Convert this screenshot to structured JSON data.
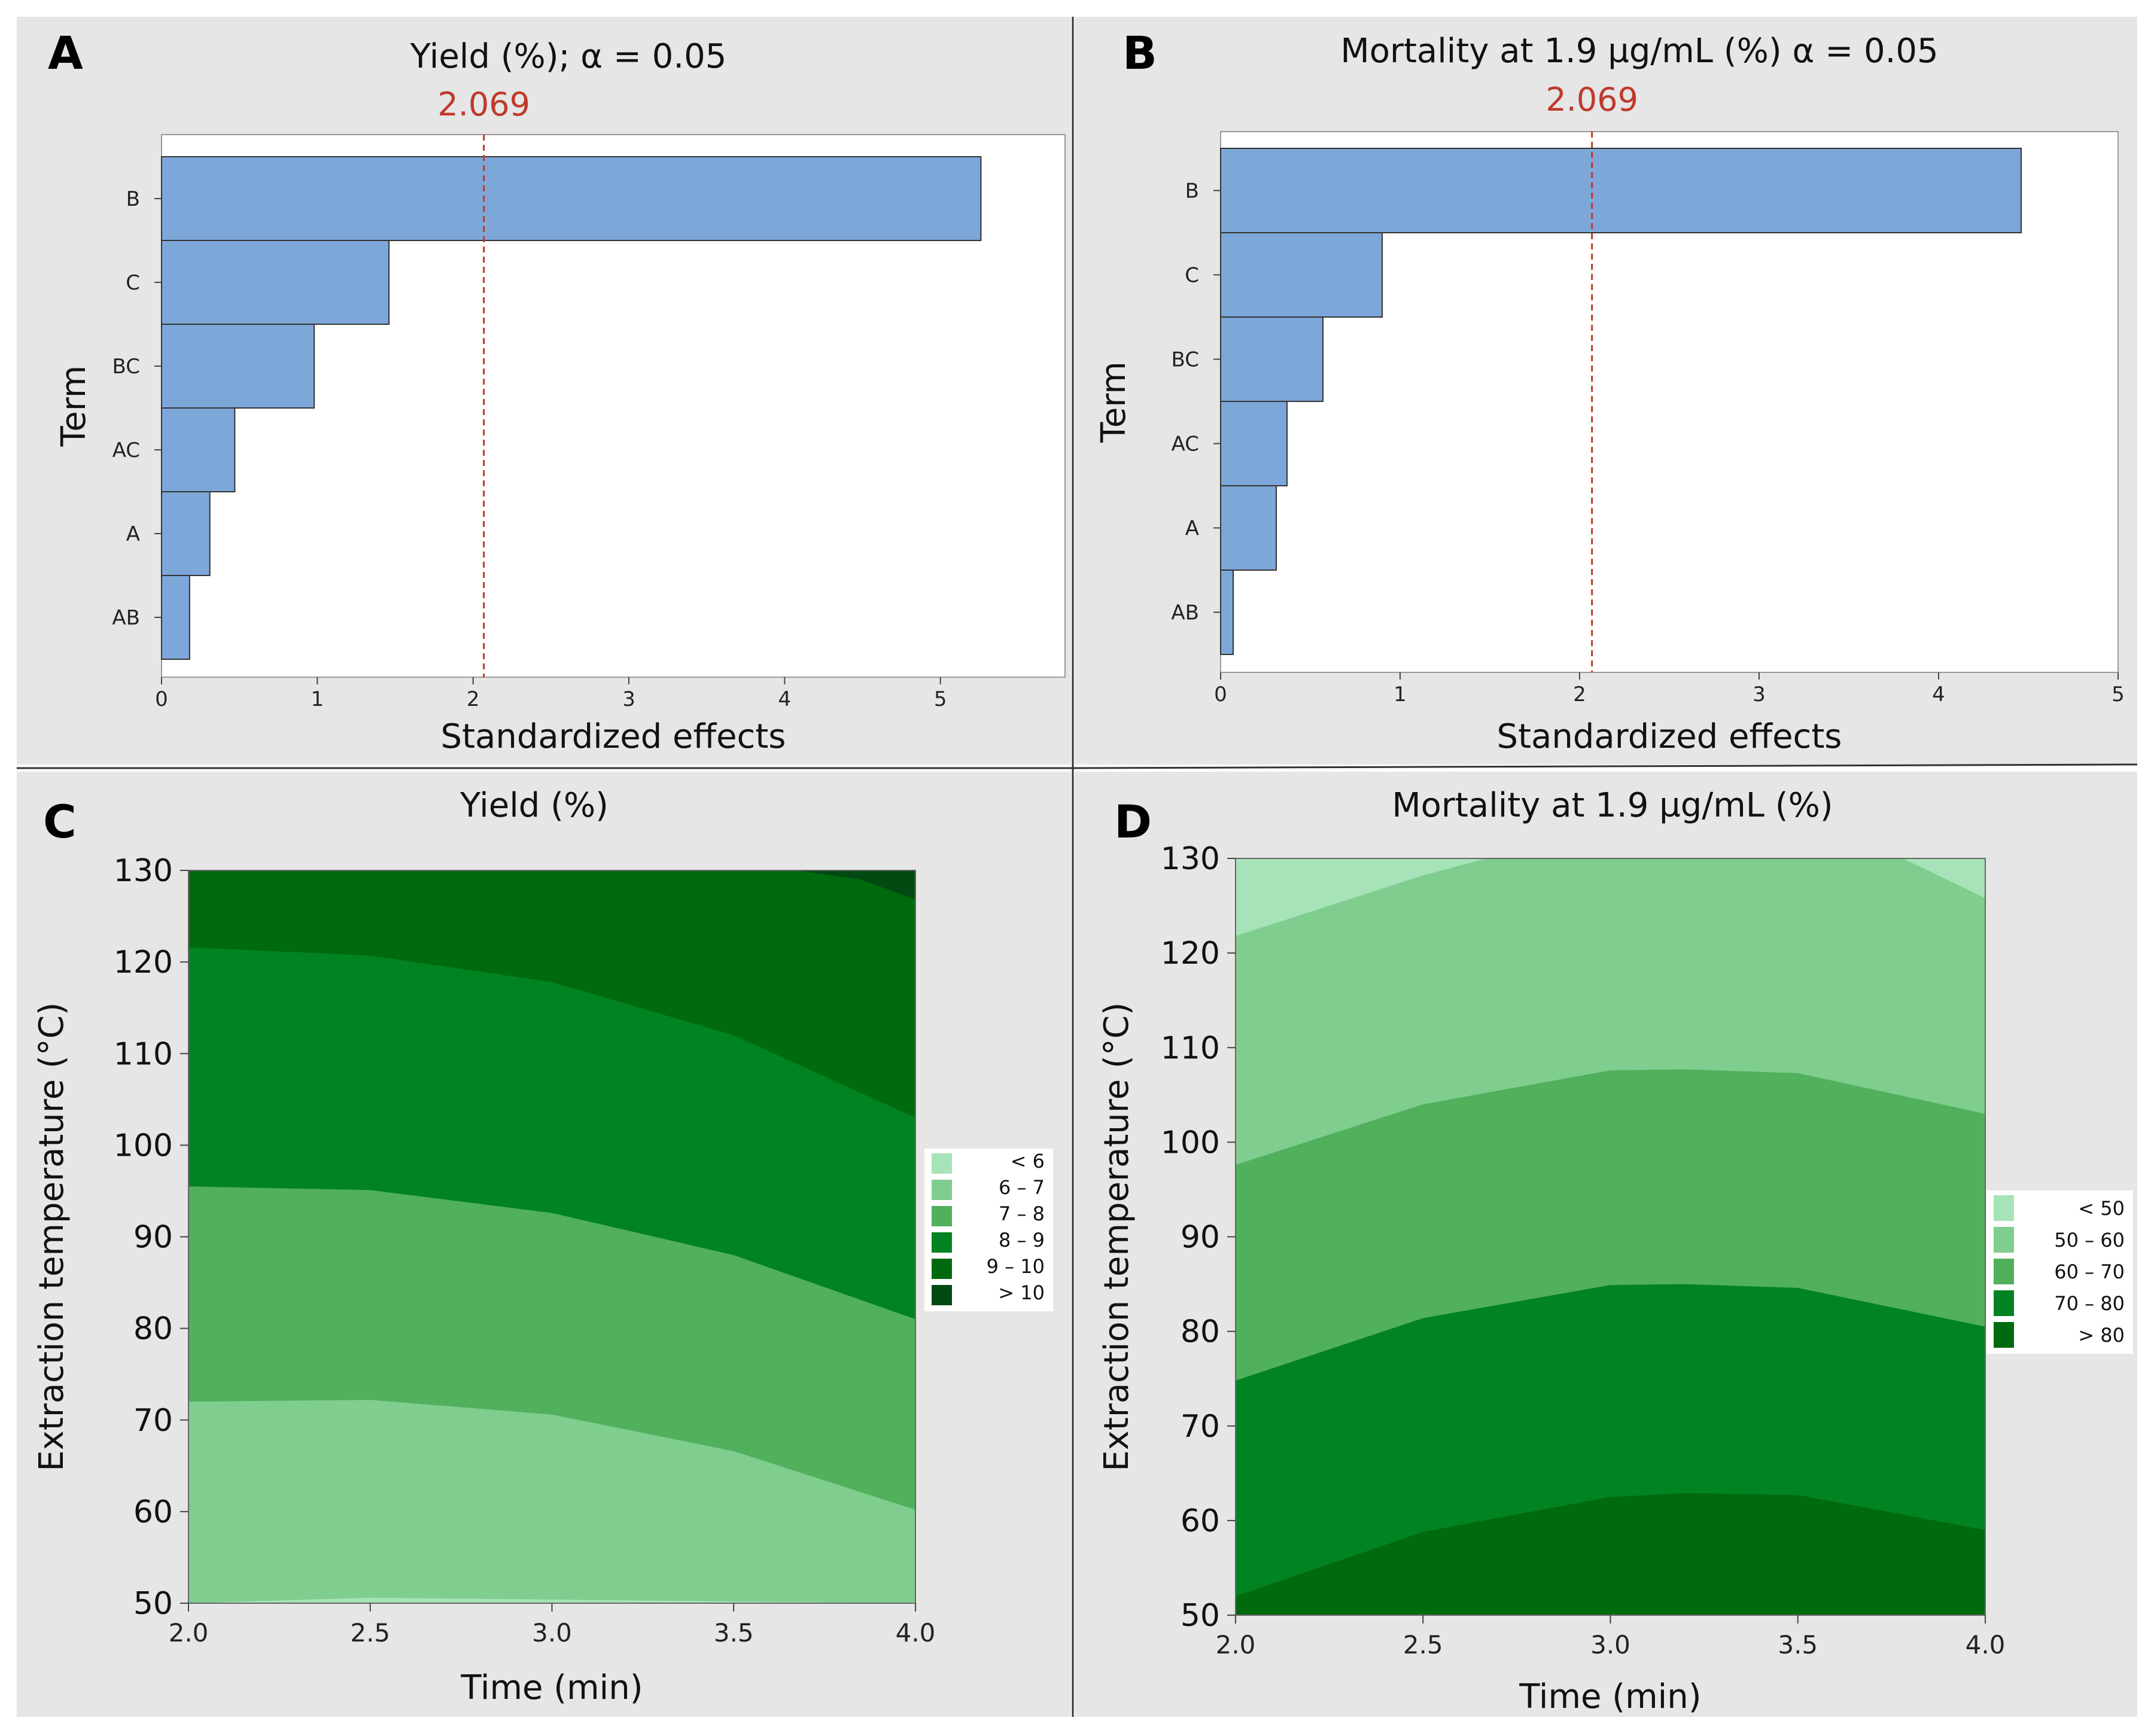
{
  "colors": {
    "panel_bg": "#e6e6e6",
    "bar_fill": "#7da7d9",
    "bar_stroke": "#333333",
    "ref_line": "#c0392b",
    "divider": "#333333"
  },
  "panels": {
    "A": {
      "letter": "A"
    },
    "B": {
      "letter": "B"
    },
    "C": {
      "letter": "C"
    },
    "D": {
      "letter": "D"
    }
  },
  "chart_data": [
    {
      "panel": "A",
      "type": "bar",
      "orientation": "horizontal",
      "title": "Yield (%); α = 0.05",
      "reference_value": 2.069,
      "reference_label": "2.069",
      "categories": [
        "B",
        "C",
        "BC",
        "AC",
        "A",
        "AB"
      ],
      "values": [
        5.26,
        1.46,
        0.98,
        0.47,
        0.31,
        0.18
      ],
      "xlabel": "Standardized effects",
      "ylabel": "Term",
      "xlim": [
        0,
        5.8
      ],
      "xticks": [
        0,
        1,
        2,
        3,
        4,
        5
      ]
    },
    {
      "panel": "B",
      "type": "bar",
      "orientation": "horizontal",
      "title": "Mortality at 1.9 µg/mL (%) α = 0.05",
      "reference_value": 2.069,
      "reference_label": "2.069",
      "categories": [
        "B",
        "C",
        "BC",
        "AC",
        "A",
        "AB"
      ],
      "values": [
        4.46,
        0.9,
        0.57,
        0.37,
        0.31,
        0.07
      ],
      "xlabel": "Standardized effects",
      "ylabel": "Term",
      "xlim": [
        0,
        5
      ],
      "xticks": [
        0,
        1,
        2,
        3,
        4,
        5
      ]
    },
    {
      "panel": "C",
      "type": "contour",
      "title": "Yield (%)",
      "xlabel": "Time (min)",
      "ylabel": "Extraction temperature (°C)",
      "xlim": [
        2.0,
        4.0
      ],
      "ylim": [
        50,
        130
      ],
      "xticks": [
        "2.0",
        "2.5",
        "3.0",
        "3.5",
        "4.0"
      ],
      "yticks": [
        "50",
        "60",
        "70",
        "80",
        "90",
        "100",
        "110",
        "120",
        "130"
      ],
      "levels": [
        {
          "label": "<   6",
          "color": "#a7e3b8"
        },
        {
          "label": "6  –   7",
          "color": "#7fcd8f"
        },
        {
          "label": "7  –   8",
          "color": "#50b05c"
        },
        {
          "label": "8  –   9",
          "color": "#028321"
        },
        {
          "label": "9  –  10",
          "color": "#006a0e"
        },
        {
          "label": ">  10",
          "color": "#024a12"
        }
      ],
      "boundaries": [
        {
          "level_above": 1,
          "points": [
            [
              2.0,
              50.0
            ],
            [
              2.5,
              50.6
            ],
            [
              3.0,
              50.4
            ],
            [
              3.5,
              50.2
            ],
            [
              4.0,
              50.0
            ]
          ]
        },
        {
          "level_above": 2,
          "points": [
            [
              2.0,
              72.0
            ],
            [
              2.5,
              72.2
            ],
            [
              3.0,
              70.6
            ],
            [
              3.5,
              66.6
            ],
            [
              4.0,
              60.2
            ]
          ]
        },
        {
          "level_above": 3,
          "points": [
            [
              2.0,
              95.5
            ],
            [
              2.5,
              95.1
            ],
            [
              3.0,
              92.6
            ],
            [
              3.5,
              88.0
            ],
            [
              4.0,
              81.0
            ]
          ]
        },
        {
          "level_above": 4,
          "points": [
            [
              2.0,
              121.6
            ],
            [
              2.5,
              120.7
            ],
            [
              3.0,
              117.8
            ],
            [
              3.5,
              112.0
            ],
            [
              4.0,
              103.0
            ]
          ]
        },
        {
          "level_above": 5,
          "points": [
            [
              3.67,
              130.0
            ],
            [
              3.85,
              129.0
            ],
            [
              4.0,
              126.8
            ]
          ]
        }
      ]
    },
    {
      "panel": "D",
      "type": "contour",
      "title": "Mortality at 1.9 µg/mL (%)",
      "xlabel": "Time (min)",
      "ylabel": "Extraction temperature (°C)",
      "xlim": [
        2.0,
        4.0
      ],
      "ylim": [
        50,
        130
      ],
      "xticks": [
        "2.0",
        "2.5",
        "3.0",
        "3.5",
        "4.0"
      ],
      "yticks": [
        "50",
        "60",
        "70",
        "80",
        "90",
        "100",
        "110",
        "120",
        "130"
      ],
      "levels": [
        {
          "label": "<  50",
          "color": "#a7e3b8"
        },
        {
          "label": "50  –  60",
          "color": "#7fcd8f"
        },
        {
          "label": "60  –  70",
          "color": "#50b05c"
        },
        {
          "label": "70  –  80",
          "color": "#028321"
        },
        {
          "label": ">  80",
          "color": "#006a0e"
        }
      ],
      "boundaries": [
        {
          "level_above": 3,
          "points": [
            [
              2.0,
              52.0
            ],
            [
              2.5,
              58.8
            ],
            [
              3.0,
              62.5
            ],
            [
              3.2,
              62.9
            ],
            [
              3.5,
              62.7
            ],
            [
              4.0,
              59.0
            ]
          ]
        },
        {
          "level_above": 2,
          "points": [
            [
              2.0,
              74.8
            ],
            [
              2.5,
              81.4
            ],
            [
              3.0,
              84.9
            ],
            [
              3.2,
              85.0
            ],
            [
              3.5,
              84.6
            ],
            [
              4.0,
              80.5
            ]
          ]
        },
        {
          "level_above": 1,
          "points": [
            [
              2.0,
              97.6
            ],
            [
              2.5,
              104.0
            ],
            [
              3.0,
              107.6
            ],
            [
              3.2,
              107.7
            ],
            [
              3.5,
              107.3
            ],
            [
              4.0,
              103.0
            ]
          ]
        },
        {
          "level_above": 0,
          "points": [
            [
              2.0,
              121.8
            ],
            [
              2.5,
              128.2
            ],
            [
              2.67,
              130.0
            ],
            [
              3.78,
              130.0
            ],
            [
              4.0,
              125.8
            ]
          ]
        }
      ]
    }
  ]
}
